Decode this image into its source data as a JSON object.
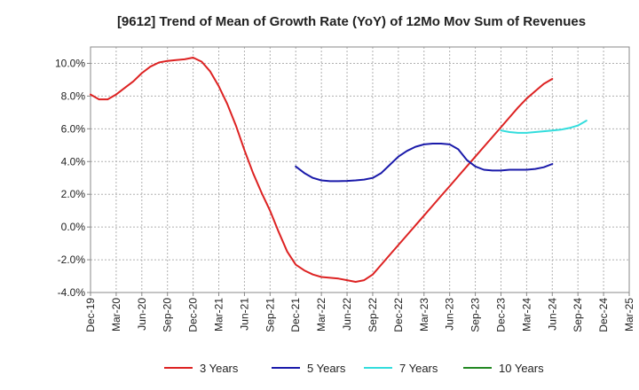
{
  "chart_data": {
    "type": "line",
    "title": "[9612]  Trend of Mean of Growth Rate (YoY) of 12Mo Mov Sum of Revenues",
    "xlabel": "",
    "ylabel": "",
    "ylim": [
      -4.0,
      11.0
    ],
    "grid": true,
    "legend_position": "bottom",
    "y_ticks": [
      {
        "value": 10,
        "label": "10.0%"
      },
      {
        "value": 8,
        "label": "8.0%"
      },
      {
        "value": 6,
        "label": "6.0%"
      },
      {
        "value": 4,
        "label": "4.0%"
      },
      {
        "value": 2,
        "label": "2.0%"
      },
      {
        "value": 0,
        "label": "0.0%"
      },
      {
        "value": -2,
        "label": "-2.0%"
      },
      {
        "value": -4,
        "label": "-4.0%"
      }
    ],
    "x_ticks": [
      {
        "index": 0,
        "label": "Dec-19"
      },
      {
        "index": 3,
        "label": "Mar-20"
      },
      {
        "index": 6,
        "label": "Jun-20"
      },
      {
        "index": 9,
        "label": "Sep-20"
      },
      {
        "index": 12,
        "label": "Dec-20"
      },
      {
        "index": 15,
        "label": "Mar-21"
      },
      {
        "index": 18,
        "label": "Jun-21"
      },
      {
        "index": 21,
        "label": "Sep-21"
      },
      {
        "index": 24,
        "label": "Dec-21"
      },
      {
        "index": 27,
        "label": "Mar-22"
      },
      {
        "index": 30,
        "label": "Jun-22"
      },
      {
        "index": 33,
        "label": "Sep-22"
      },
      {
        "index": 36,
        "label": "Dec-22"
      },
      {
        "index": 39,
        "label": "Mar-23"
      },
      {
        "index": 42,
        "label": "Jun-23"
      },
      {
        "index": 45,
        "label": "Sep-23"
      },
      {
        "index": 48,
        "label": "Dec-23"
      },
      {
        "index": 51,
        "label": "Mar-24"
      },
      {
        "index": 54,
        "label": "Jun-24"
      },
      {
        "index": 57,
        "label": "Sep-24"
      },
      {
        "index": 60,
        "label": "Dec-24"
      },
      {
        "index": 63,
        "label": "Mar-25"
      }
    ],
    "x_count": 64,
    "series": [
      {
        "name": "3 Years",
        "color": "#dd2222",
        "start_index": 0,
        "values": [
          8.1,
          7.8,
          7.8,
          8.1,
          8.5,
          8.9,
          9.4,
          9.8,
          10.05,
          10.15,
          10.2,
          10.25,
          10.35,
          10.1,
          9.5,
          8.6,
          7.5,
          6.2,
          4.7,
          3.3,
          2.1,
          1.0,
          -0.3,
          -1.5,
          -2.3,
          -2.65,
          -2.9,
          -3.05,
          -3.1,
          -3.15,
          -3.25,
          -3.35,
          -3.25,
          -2.9,
          -2.3,
          -1.7,
          -1.1,
          -0.5,
          0.1,
          0.7,
          1.3,
          1.9,
          2.5,
          3.1,
          3.7,
          4.3,
          4.9,
          5.5,
          6.1,
          6.7,
          7.3,
          7.85,
          8.3,
          8.75,
          9.05
        ]
      },
      {
        "name": "5 Years",
        "color": "#1a1aaa",
        "start_index": 24,
        "values": [
          3.7,
          3.3,
          3.0,
          2.85,
          2.8,
          2.8,
          2.82,
          2.85,
          2.9,
          3.0,
          3.3,
          3.8,
          4.3,
          4.65,
          4.9,
          5.05,
          5.1,
          5.1,
          5.05,
          4.75,
          4.1,
          3.7,
          3.5,
          3.45,
          3.45,
          3.5,
          3.5,
          3.5,
          3.55,
          3.65,
          3.85
        ]
      },
      {
        "name": "7 Years",
        "color": "#33dddd",
        "start_index": 48,
        "values": [
          5.9,
          5.8,
          5.75,
          5.75,
          5.8,
          5.85,
          5.9,
          5.95,
          6.05,
          6.2,
          6.5
        ]
      },
      {
        "name": "10 Years",
        "color": "#228822",
        "start_index": 0,
        "values": []
      }
    ]
  }
}
